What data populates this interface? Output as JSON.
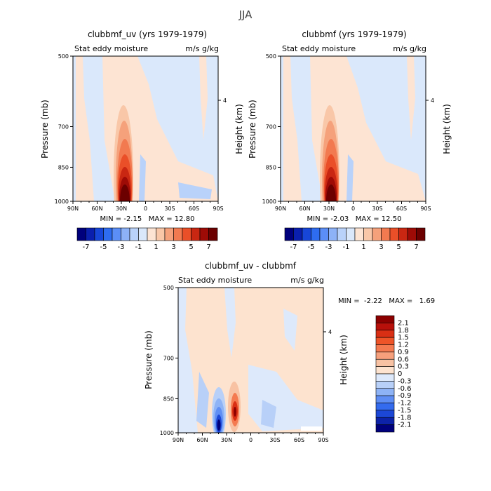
{
  "figure": {
    "title": "JJA"
  },
  "chart_data": [
    {
      "type": "heatmap",
      "title": "clubbmf_uv (yrs 1979-1979)",
      "left_subtitle": "Stat eddy moisture",
      "right_subtitle": "m/s g/kg",
      "ylabel": "Pressure (mb)",
      "y2label": "Height (km)",
      "xticks": [
        "90N",
        "60N",
        "30N",
        "0",
        "30S",
        "60S",
        "90S"
      ],
      "yticks": [
        "500",
        "700",
        "850",
        "1000"
      ],
      "y2ticks": [
        "4"
      ],
      "stats": "MIN = -2.15   MAX = 12.80",
      "min": -2.15,
      "max": 12.8,
      "features": [
        {
          "lat": 30,
          "p": 950,
          "value": 12.8,
          "desc": "strong positive maximum near surface ~30N"
        },
        {
          "lat": 12,
          "p": 920,
          "value": -2.15,
          "desc": "weak negative minimum near surface ~10N"
        }
      ],
      "colorbar": {
        "labels": [
          "-7",
          "-5",
          "-3",
          "-1",
          "1",
          "3",
          "5",
          "7"
        ],
        "colors": [
          "#00007c",
          "#0a1fae",
          "#1746d8",
          "#2e6cf0",
          "#5b8ef7",
          "#8db2f7",
          "#b9d2fa",
          "#dae8fb",
          "#fde4d3",
          "#f9c7a8",
          "#f5a17b",
          "#f27a50",
          "#ea4f28",
          "#c92712",
          "#9e0b06",
          "#6c0000"
        ]
      }
    },
    {
      "type": "heatmap",
      "title": "clubbmf (yrs 1979-1979)",
      "left_subtitle": "Stat eddy moisture",
      "right_subtitle": "m/s g/kg",
      "ylabel": "Pressure (mb)",
      "y2label": "Height (km)",
      "xticks": [
        "90N",
        "60N",
        "30N",
        "0",
        "30S",
        "60S",
        "90S"
      ],
      "yticks": [
        "500",
        "700",
        "850",
        "1000"
      ],
      "y2ticks": [
        "4"
      ],
      "stats": "MIN = -2.03   MAX = 12.50",
      "min": -2.03,
      "max": 12.5,
      "features": [
        {
          "lat": 30,
          "p": 950,
          "value": 12.5,
          "desc": "strong positive maximum near surface ~30N"
        },
        {
          "lat": 12,
          "p": 920,
          "value": -2.03,
          "desc": "weak negative minimum near surface ~10N"
        }
      ],
      "colorbar": {
        "labels": [
          "-7",
          "-5",
          "-3",
          "-1",
          "1",
          "3",
          "5",
          "7"
        ],
        "colors": [
          "#00007c",
          "#0a1fae",
          "#1746d8",
          "#2e6cf0",
          "#5b8ef7",
          "#8db2f7",
          "#b9d2fa",
          "#dae8fb",
          "#fde4d3",
          "#f9c7a8",
          "#f5a17b",
          "#f27a50",
          "#ea4f28",
          "#c92712",
          "#9e0b06",
          "#6c0000"
        ]
      }
    },
    {
      "type": "heatmap",
      "title": "clubbmf_uv - clubbmf",
      "left_subtitle": "Stat eddy moisture",
      "right_subtitle": "m/s g/kg",
      "ylabel": "Pressure (mb)",
      "y2label": "Height (km)",
      "xticks": [
        "90N",
        "60N",
        "30N",
        "0",
        "30S",
        "60S",
        "90S"
      ],
      "yticks": [
        "500",
        "700",
        "850",
        "1000"
      ],
      "y2ticks": [
        "4"
      ],
      "stats": "MIN =  -2.22   MAX =   1.69",
      "min": -2.22,
      "max": 1.69,
      "features": [
        {
          "lat": 35,
          "p": 960,
          "value": -2.22,
          "desc": "negative minimum near surface ~35N"
        },
        {
          "lat": 22,
          "p": 910,
          "value": 1.69,
          "desc": "positive maximum near surface ~22N"
        }
      ],
      "colorbar": {
        "labels": [
          "2.1",
          "1.8",
          "1.5",
          "1.2",
          "0.9",
          "0.6",
          "0.3",
          "0",
          "-0.3",
          "-0.6",
          "-0.9",
          "-1.2",
          "-1.5",
          "-1.8",
          "-2.1"
        ],
        "colors": [
          "#8c0000",
          "#b8100a",
          "#d92f14",
          "#ee5428",
          "#f47a50",
          "#f6a07c",
          "#f8c2a3",
          "#fde3cf",
          "#dde9fb",
          "#b8d0f8",
          "#8eb3f6",
          "#5f8ef4",
          "#346bee",
          "#1c47d6",
          "#0d22a8",
          "#00007c"
        ]
      }
    }
  ]
}
